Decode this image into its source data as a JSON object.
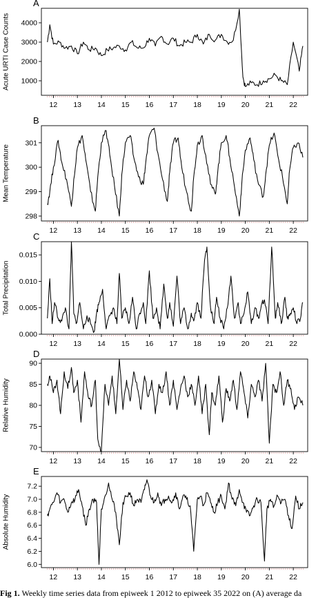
{
  "caption": {
    "label": "Fig 1.",
    "text": "Weekly time series data from epiweek 1 2012 to epiweek 35 2022 on (A) average da"
  },
  "chart_data": [
    {
      "type": "line",
      "panel": "A",
      "ylabel": "Acute URTI Case Counts",
      "x_tick_labels": [
        "12",
        "13",
        "14",
        "15",
        "16",
        "17",
        "18",
        "19",
        "20",
        "21",
        "22"
      ],
      "yticks": [
        1000,
        2000,
        3000,
        4000
      ],
      "ylim": [
        250,
        4750
      ],
      "series": [
        {
          "x": [
            2012.0,
            2012.1,
            2012.25,
            2012.5,
            2012.75,
            2013.0,
            2013.25,
            2013.5,
            2013.75,
            2014.0,
            2014.25,
            2014.5,
            2014.75,
            2015.0,
            2015.25,
            2015.5,
            2015.75,
            2016.0,
            2016.25,
            2016.5,
            2016.75,
            2017.0,
            2017.25,
            2017.5,
            2017.75,
            2018.0,
            2018.25,
            2018.5,
            2018.75,
            2019.0,
            2019.25,
            2019.5,
            2019.75,
            2020.0,
            2020.15,
            2020.25,
            2020.5,
            2020.75,
            2021.0,
            2021.25,
            2021.5,
            2021.75,
            2022.0,
            2022.25,
            2022.5,
            2022.65
          ],
          "y": [
            3000,
            3900,
            2900,
            3000,
            2700,
            2800,
            2400,
            3000,
            2600,
            2700,
            2300,
            2600,
            2700,
            2800,
            2600,
            3000,
            2700,
            2700,
            3200,
            2800,
            3300,
            2900,
            3200,
            2800,
            3000,
            3000,
            3400,
            2900,
            3400,
            3100,
            3400,
            3000,
            3100,
            4700,
            1200,
            700,
            900,
            800,
            1000,
            1100,
            1300,
            1000,
            800,
            3000,
            1500,
            2800
          ]
        }
      ]
    },
    {
      "type": "line",
      "panel": "B",
      "ylabel": "Mean Temperature",
      "x_tick_labels": [
        "12",
        "13",
        "14",
        "15",
        "16",
        "17",
        "18",
        "19",
        "20",
        "21",
        "22"
      ],
      "yticks": [
        298,
        299,
        300,
        301
      ],
      "ylim": [
        297.8,
        301.7
      ],
      "series": [
        {
          "x": [
            2012.0,
            2012.1,
            2012.25,
            2012.45,
            2012.6,
            2012.8,
            2013.0,
            2013.1,
            2013.25,
            2013.45,
            2013.6,
            2013.8,
            2014.0,
            2014.1,
            2014.25,
            2014.45,
            2014.6,
            2014.8,
            2015.0,
            2015.1,
            2015.25,
            2015.45,
            2015.6,
            2015.8,
            2016.0,
            2016.1,
            2016.25,
            2016.45,
            2016.6,
            2016.8,
            2017.0,
            2017.1,
            2017.25,
            2017.45,
            2017.6,
            2017.8,
            2018.0,
            2018.1,
            2018.25,
            2018.45,
            2018.6,
            2018.8,
            2019.0,
            2019.1,
            2019.25,
            2019.45,
            2019.6,
            2019.8,
            2020.0,
            2020.1,
            2020.25,
            2020.45,
            2020.6,
            2020.8,
            2021.0,
            2021.1,
            2021.25,
            2021.45,
            2021.6,
            2021.8,
            2022.0,
            2022.1,
            2022.25,
            2022.45,
            2022.65
          ],
          "y": [
            298.5,
            299.0,
            300.0,
            301.1,
            300.2,
            299.5,
            298.4,
            299.5,
            300.8,
            301.3,
            300.3,
            299.0,
            298.2,
            299.6,
            301.0,
            301.5,
            300.5,
            299.2,
            298.0,
            299.7,
            301.0,
            301.3,
            300.4,
            299.6,
            299.3,
            300.2,
            301.3,
            301.6,
            300.6,
            299.5,
            298.6,
            299.8,
            301.0,
            301.2,
            300.0,
            299.0,
            298.2,
            299.6,
            300.9,
            301.3,
            300.5,
            299.3,
            298.9,
            299.8,
            301.0,
            301.3,
            300.4,
            299.2,
            298.0,
            299.3,
            300.7,
            301.2,
            300.3,
            299.3,
            298.8,
            299.7,
            300.9,
            301.4,
            300.5,
            299.6,
            298.5,
            299.9,
            300.8,
            301.0,
            300.4
          ]
        }
      ]
    },
    {
      "type": "line",
      "panel": "C",
      "ylabel": "Total Precipitation",
      "x_tick_labels": [
        "12",
        "13",
        "14",
        "15",
        "16",
        "17",
        "18",
        "19",
        "20",
        "21",
        "22"
      ],
      "yticks": [
        0.0,
        0.005,
        0.01,
        0.015
      ],
      "ylim": [
        0.0,
        0.0175
      ],
      "series": [
        {
          "x": [
            2012.0,
            2012.1,
            2012.2,
            2012.3,
            2012.45,
            2012.6,
            2012.75,
            2012.9,
            2013.0,
            2013.1,
            2013.2,
            2013.35,
            2013.5,
            2013.65,
            2013.8,
            2013.95,
            2014.05,
            2014.15,
            2014.3,
            2014.45,
            2014.6,
            2014.75,
            2014.9,
            2015.0,
            2015.1,
            2015.25,
            2015.4,
            2015.55,
            2015.7,
            2015.85,
            2016.0,
            2016.1,
            2016.25,
            2016.4,
            2016.55,
            2016.7,
            2016.85,
            2017.0,
            2017.1,
            2017.25,
            2017.4,
            2017.55,
            2017.7,
            2017.85,
            2018.0,
            2018.1,
            2018.25,
            2018.4,
            2018.55,
            2018.65,
            2018.8,
            2018.95,
            2019.05,
            2019.2,
            2019.35,
            2019.5,
            2019.65,
            2019.8,
            2019.95,
            2020.05,
            2020.2,
            2020.35,
            2020.5,
            2020.65,
            2020.8,
            2020.95,
            2021.05,
            2021.2,
            2021.35,
            2021.5,
            2021.6,
            2021.75,
            2021.9,
            2022.0,
            2022.1,
            2022.25,
            2022.4,
            2022.55,
            2022.65
          ],
          "y": [
            0.003,
            0.0105,
            0.002,
            0.006,
            0.003,
            0.0025,
            0.005,
            0.001,
            0.0175,
            0.004,
            0.002,
            0.006,
            0.001,
            0.0035,
            0.002,
            0.0005,
            0.004,
            0.006,
            0.0085,
            0.001,
            0.0035,
            0.005,
            0.002,
            0.0115,
            0.003,
            0.005,
            0.002,
            0.007,
            0.001,
            0.004,
            0.006,
            0.002,
            0.012,
            0.003,
            0.005,
            0.001,
            0.0095,
            0.003,
            0.006,
            0.0015,
            0.011,
            0.002,
            0.005,
            0.001,
            0.004,
            0.0025,
            0.006,
            0.003,
            0.014,
            0.0165,
            0.005,
            0.002,
            0.007,
            0.003,
            0.001,
            0.005,
            0.011,
            0.003,
            0.006,
            0.002,
            0.004,
            0.008,
            0.002,
            0.005,
            0.003,
            0.006,
            0.0065,
            0.002,
            0.0165,
            0.003,
            0.006,
            0.002,
            0.007,
            0.003,
            0.0035,
            0.005,
            0.002,
            0.003,
            0.006
          ]
        }
      ]
    },
    {
      "type": "line",
      "panel": "D",
      "ylabel": "Relative Humidity",
      "x_tick_labels": [
        "12",
        "13",
        "14",
        "15",
        "16",
        "17",
        "18",
        "19",
        "20",
        "21",
        "22"
      ],
      "yticks": [
        70,
        75,
        80,
        85,
        90
      ],
      "ylim": [
        69,
        91
      ],
      "series": [
        {
          "x": [
            2012.0,
            2012.1,
            2012.25,
            2012.4,
            2012.55,
            2012.7,
            2012.85,
            2013.0,
            2013.1,
            2013.25,
            2013.4,
            2013.55,
            2013.7,
            2013.85,
            2014.0,
            2014.1,
            2014.25,
            2014.4,
            2014.55,
            2014.7,
            2014.85,
            2015.0,
            2015.15,
            2015.3,
            2015.45,
            2015.6,
            2015.75,
            2015.9,
            2016.05,
            2016.2,
            2016.35,
            2016.5,
            2016.65,
            2016.8,
            2016.95,
            2017.1,
            2017.25,
            2017.4,
            2017.55,
            2017.7,
            2017.85,
            2018.0,
            2018.15,
            2018.3,
            2018.45,
            2018.6,
            2018.75,
            2018.85,
            2019.0,
            2019.15,
            2019.3,
            2019.45,
            2019.6,
            2019.75,
            2019.9,
            2020.05,
            2020.2,
            2020.35,
            2020.5,
            2020.65,
            2020.8,
            2020.95,
            2021.1,
            2021.25,
            2021.4,
            2021.55,
            2021.7,
            2021.85,
            2022.0,
            2022.15,
            2022.3,
            2022.45,
            2022.65
          ],
          "y": [
            85,
            87,
            83,
            86,
            78,
            88,
            84,
            89,
            83,
            86,
            76,
            88,
            82,
            80,
            86,
            72,
            69,
            85,
            80,
            87,
            78,
            91,
            79,
            86,
            81,
            88,
            84,
            79,
            87,
            82,
            86,
            78,
            85,
            83,
            88,
            80,
            86,
            79,
            84,
            87,
            82,
            85,
            80,
            87,
            78,
            85,
            73,
            83,
            80,
            87,
            76,
            84,
            81,
            86,
            79,
            88,
            83,
            77,
            85,
            82,
            86,
            81,
            90,
            71,
            85,
            83,
            88,
            80,
            86,
            84,
            79,
            82,
            80
          ]
        }
      ]
    },
    {
      "type": "line",
      "panel": "E",
      "ylabel": "Absolute Humidity",
      "x_tick_labels": [
        "12",
        "13",
        "14",
        "15",
        "16",
        "17",
        "18",
        "19",
        "20",
        "21",
        "22"
      ],
      "yticks": [
        6.0,
        6.2,
        6.4,
        6.6,
        6.8,
        7.0,
        7.2
      ],
      "ylim": [
        5.95,
        7.35
      ],
      "series": [
        {
          "x": [
            2012.0,
            2012.1,
            2012.25,
            2012.4,
            2012.55,
            2012.7,
            2012.85,
            2013.0,
            2013.15,
            2013.3,
            2013.45,
            2013.6,
            2013.75,
            2013.9,
            2014.05,
            2014.15,
            2014.25,
            2014.4,
            2014.55,
            2014.7,
            2014.85,
            2015.0,
            2015.15,
            2015.3,
            2015.45,
            2015.6,
            2015.75,
            2015.9,
            2016.05,
            2016.15,
            2016.3,
            2016.45,
            2016.6,
            2016.75,
            2016.9,
            2017.05,
            2017.2,
            2017.35,
            2017.5,
            2017.65,
            2017.8,
            2017.95,
            2018.1,
            2018.25,
            2018.4,
            2018.5,
            2018.65,
            2018.8,
            2018.95,
            2019.1,
            2019.25,
            2019.4,
            2019.55,
            2019.7,
            2019.85,
            2020.0,
            2020.15,
            2020.3,
            2020.45,
            2020.6,
            2020.75,
            2020.9,
            2021.05,
            2021.15,
            2021.3,
            2021.45,
            2021.6,
            2021.75,
            2021.9,
            2022.05,
            2022.2,
            2022.35,
            2022.5,
            2022.65
          ],
          "y": [
            6.75,
            6.85,
            6.95,
            7.1,
            6.95,
            7.0,
            6.8,
            6.95,
            7.0,
            7.15,
            6.9,
            6.6,
            6.85,
            7.0,
            6.95,
            6.0,
            6.85,
            7.05,
            7.25,
            7.0,
            6.8,
            6.3,
            6.95,
            7.05,
            7.1,
            6.9,
            7.0,
            6.95,
            7.15,
            7.3,
            7.05,
            6.95,
            7.1,
            6.9,
            7.0,
            7.05,
            6.95,
            7.1,
            6.85,
            7.05,
            7.0,
            6.9,
            6.2,
            7.0,
            7.05,
            6.9,
            7.1,
            6.95,
            6.8,
            6.95,
            7.05,
            6.85,
            7.25,
            7.0,
            6.9,
            7.15,
            6.95,
            6.8,
            6.75,
            6.9,
            7.0,
            6.95,
            6.05,
            6.85,
            7.0,
            6.9,
            7.05,
            6.95,
            7.0,
            6.75,
            6.55,
            7.05,
            6.85,
            6.95
          ]
        }
      ]
    }
  ]
}
